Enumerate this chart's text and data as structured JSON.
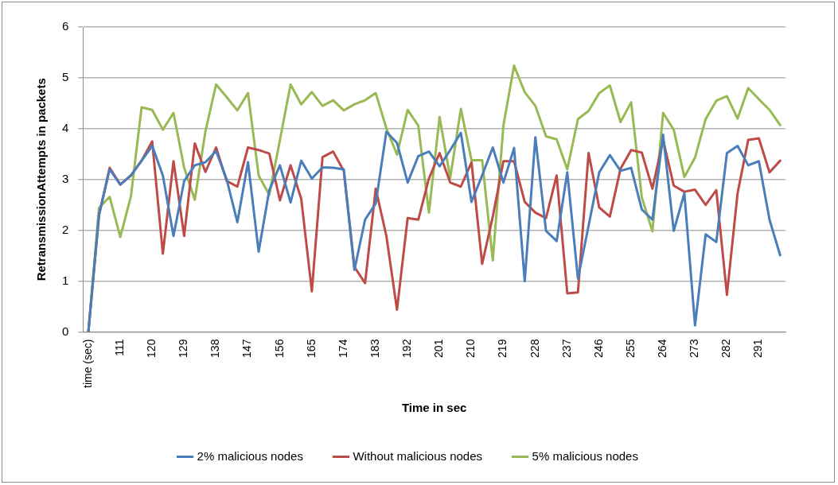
{
  "chart_data": {
    "type": "line",
    "xlabel": "Time in sec",
    "ylabel": "RetransmissionAttempts in packets",
    "categories": [
      "time (sec)",
      null,
      null,
      "111",
      null,
      null,
      "120",
      null,
      null,
      "129",
      null,
      null,
      "138",
      null,
      null,
      "147",
      null,
      null,
      "156",
      null,
      null,
      "165",
      null,
      null,
      "174",
      null,
      null,
      "183",
      null,
      null,
      "192",
      null,
      null,
      "201",
      null,
      null,
      "210",
      null,
      null,
      "219",
      null,
      null,
      "228",
      null,
      null,
      "237",
      null,
      null,
      "246",
      null,
      null,
      "255",
      null,
      null,
      "264",
      null,
      null,
      "273",
      null,
      null,
      "282",
      null,
      null,
      "291",
      null,
      null
    ],
    "series": [
      {
        "name": "2% malicious nodes",
        "color": "#4a7ebb",
        "values": [
          0,
          2.3,
          3.2,
          2.9,
          3.08,
          3.37,
          3.66,
          3.08,
          1.89,
          2.97,
          3.28,
          3.34,
          3.56,
          3.0,
          2.16,
          3.34,
          1.58,
          2.79,
          3.28,
          2.55,
          3.37,
          3.02,
          3.24,
          3.23,
          3.2,
          1.22,
          2.21,
          2.53,
          3.94,
          3.72,
          2.94,
          3.46,
          3.55,
          3.26,
          3.58,
          3.92,
          2.56,
          3.08,
          3.63,
          2.94,
          3.62,
          1.0,
          3.83,
          1.99,
          1.79,
          3.14,
          1.05,
          2.09,
          3.14,
          3.48,
          3.17,
          3.23,
          2.41,
          2.21,
          3.88,
          1.99,
          2.73,
          0.13,
          1.92,
          1.77,
          3.52,
          3.66,
          3.28,
          3.36,
          2.21,
          1.51
        ]
      },
      {
        "name": "Without malicious nodes",
        "color": "#be4b48",
        "values": [
          0,
          2.3,
          3.23,
          2.9,
          3.08,
          3.37,
          3.75,
          1.54,
          3.36,
          1.89,
          3.71,
          3.15,
          3.63,
          2.97,
          2.86,
          3.63,
          3.58,
          3.51,
          2.59,
          3.28,
          2.62,
          0.8,
          3.44,
          3.55,
          3.17,
          1.28,
          0.96,
          2.82,
          1.89,
          0.44,
          2.24,
          2.21,
          3.02,
          3.52,
          2.94,
          2.86,
          3.34,
          1.34,
          2.27,
          3.36,
          3.36,
          2.56,
          2.35,
          2.24,
          3.08,
          0.76,
          0.78,
          3.52,
          2.45,
          2.27,
          3.21,
          3.58,
          3.53,
          2.82,
          3.78,
          2.88,
          2.76,
          2.8,
          2.5,
          2.79,
          0.73,
          2.73,
          3.78,
          3.81,
          3.14,
          3.37
        ]
      },
      {
        "name": "5% malicious nodes",
        "color": "#98b954",
        "values": [
          0,
          2.44,
          2.66,
          1.87,
          2.67,
          4.42,
          4.37,
          3.98,
          4.31,
          3.23,
          2.6,
          3.95,
          4.87,
          4.62,
          4.36,
          4.7,
          3.08,
          2.7,
          3.78,
          4.87,
          4.48,
          4.72,
          4.45,
          4.56,
          4.36,
          4.48,
          4.56,
          4.7,
          4.01,
          3.49,
          4.37,
          4.06,
          2.35,
          4.23,
          3.03,
          4.39,
          3.38,
          3.38,
          1.41,
          4.07,
          5.24,
          4.72,
          4.45,
          3.85,
          3.79,
          3.2,
          4.19,
          4.35,
          4.7,
          4.85,
          4.13,
          4.52,
          2.65,
          1.98,
          4.31,
          3.98,
          3.05,
          3.43,
          4.19,
          4.55,
          4.64,
          4.2,
          4.8,
          4.58,
          4.37,
          4.07
        ]
      }
    ],
    "ylim": [
      0,
      6
    ],
    "yticks": [
      0,
      1,
      2,
      3,
      4,
      5,
      6
    ],
    "grid": "y",
    "legend": "bottom",
    "marker": "none",
    "line_style": "solid"
  }
}
